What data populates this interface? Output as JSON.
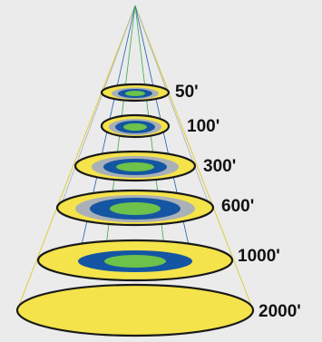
{
  "colors": {
    "background": "#ebebeb",
    "beam_line_yellow": "#d9cf3a",
    "beam_line_blue": "#1f5fae",
    "beam_line_green": "#3aa84a",
    "ellipse_outline": "#1a1a1a",
    "outer_yellow": "#f4e34a",
    "gray_ring": "#a9b0b7",
    "blue_ring": "#1456a3",
    "green_core": "#6cc24a"
  },
  "levels": [
    {
      "label": "50'",
      "fill_scheme": "yellow-gray-blue-green"
    },
    {
      "label": "100'",
      "fill_scheme": "yellow-gray-blue-green"
    },
    {
      "label": "300'",
      "fill_scheme": "yellow-gray-blue-green"
    },
    {
      "label": "600'",
      "fill_scheme": "yellow-gray-blue-green"
    },
    {
      "label": "1000'",
      "fill_scheme": "yellow-blue-green"
    },
    {
      "label": "2000'",
      "fill_scheme": "yellow"
    }
  ]
}
